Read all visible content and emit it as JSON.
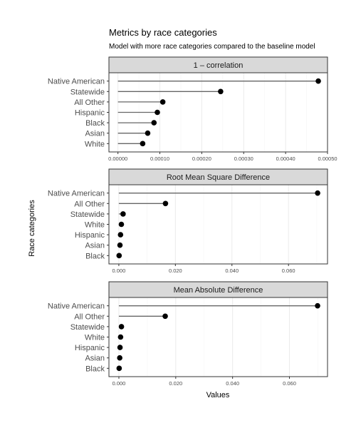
{
  "title": "Metrics by race categories",
  "subtitle": "Model with more race categories compared to the baseline model",
  "xlabel": "Values",
  "ylabel": "Race categories",
  "chart_data": [
    {
      "type": "lollipop",
      "title": "1 – correlation",
      "categories": [
        "Native American",
        "Statewide",
        "All Other",
        "Hispanic",
        "Black",
        "Asian",
        "White"
      ],
      "values": [
        0.000478,
        0.000245,
        0.000107,
        9.4e-05,
        8.6e-05,
        7.1e-05,
        5.9e-05
      ],
      "xlim": [
        -2.15e-05,
        0.0005
      ],
      "ticks": [
        0,
        0.0001,
        0.0002,
        0.0003,
        0.0004,
        0.0005
      ],
      "tick_labels": [
        "0.00000",
        "0.00010",
        "0.00020",
        "0.00030",
        "0.00040",
        "0.00050"
      ]
    },
    {
      "type": "lollipop",
      "title": "Root Mean Square Difference",
      "categories": [
        "Native American",
        "All Other",
        "Statewide",
        "White",
        "Hispanic",
        "Asian",
        "Black"
      ],
      "values": [
        0.0703,
        0.0165,
        0.0015,
        0.0009,
        0.0006,
        0.0004,
        0.0001
      ],
      "xlim": [
        -0.0035,
        0.0738
      ],
      "ticks": [
        0,
        0.02,
        0.04,
        0.06
      ],
      "tick_labels": [
        "0.000",
        "0.020",
        "0.040",
        "0.060"
      ]
    },
    {
      "type": "lollipop",
      "title": "Mean Absolute Difference",
      "categories": [
        "Native American",
        "All Other",
        "Statewide",
        "White",
        "Hispanic",
        "Asian",
        "Black"
      ],
      "values": [
        0.0699,
        0.0163,
        0.0009,
        0.0006,
        0.0004,
        0.0003,
        0.0001
      ],
      "xlim": [
        -0.0035,
        0.0734
      ],
      "ticks": [
        0,
        0.02,
        0.04,
        0.06
      ],
      "tick_labels": [
        "0.000",
        "0.020",
        "0.040",
        "0.060"
      ]
    }
  ]
}
